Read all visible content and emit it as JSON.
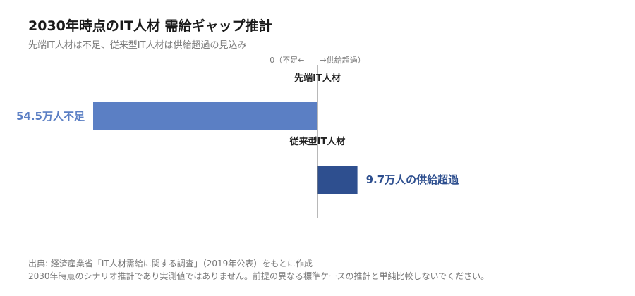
{
  "header": {
    "title": "2030年時点のIT人材 需給ギャップ推計",
    "subtitle": "先端IT人材は不足、従来型IT人材は供給超過の見込み"
  },
  "chart_data": {
    "type": "bar",
    "orientation": "horizontal",
    "axis_label": "0（不足←　　→供給超過）",
    "categories": [
      "先端IT人材",
      "従来型IT人材"
    ],
    "values": [
      -54.5,
      9.7
    ],
    "unit": "万人",
    "data_labels": [
      "54.5万人不足",
      "9.7万人の供給超過"
    ],
    "colors": [
      "#5b7fc4",
      "#2e4f8f"
    ]
  },
  "footer": {
    "source": "出典: 経済産業省「IT人材需給に関する調査」（2019年公表）をもとに作成",
    "note": "2030年時点のシナリオ推計であり実測値ではありません。前提の異なる標準ケースの推計と単純比較しないでください。"
  }
}
